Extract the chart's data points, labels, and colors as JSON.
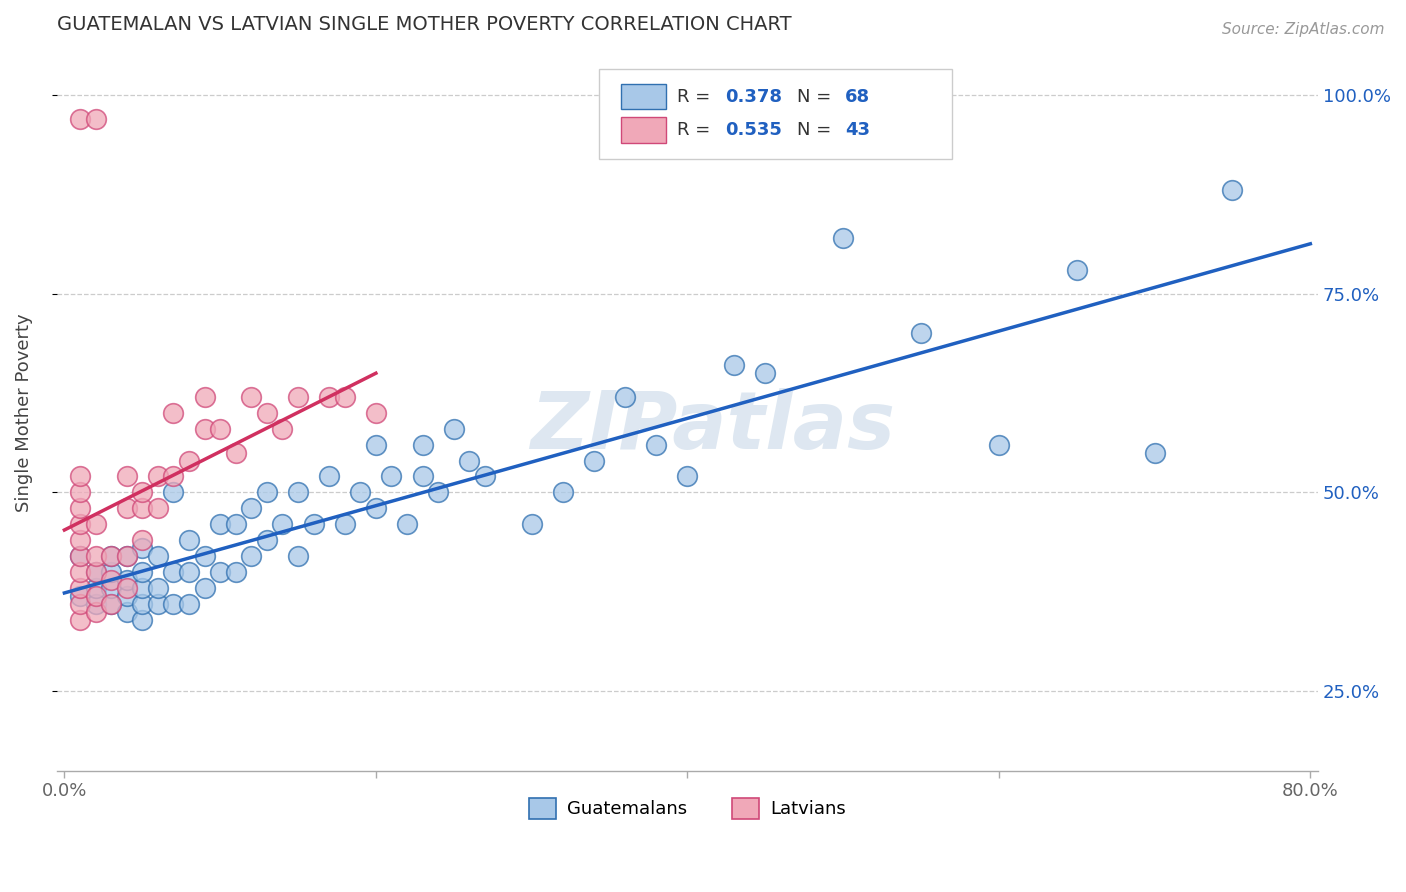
{
  "title": "GUATEMALAN VS LATVIAN SINGLE MOTHER POVERTY CORRELATION CHART",
  "source": "Source: ZipAtlas.com",
  "ylabel": "Single Mother Poverty",
  "legend_label_blue": "Guatemalans",
  "legend_label_pink": "Latvians",
  "R_blue": 0.378,
  "N_blue": 68,
  "R_pink": 0.535,
  "N_pink": 43,
  "blue_color": "#a8c8e8",
  "pink_color": "#f0a8b8",
  "blue_edge_color": "#3070b0",
  "pink_edge_color": "#d04878",
  "blue_line_color": "#2060c0",
  "pink_line_color": "#d03060",
  "watermark": "ZIPatlas",
  "blue_scatter_x": [
    0.01,
    0.01,
    0.02,
    0.02,
    0.02,
    0.03,
    0.03,
    0.03,
    0.03,
    0.04,
    0.04,
    0.04,
    0.04,
    0.05,
    0.05,
    0.05,
    0.05,
    0.05,
    0.06,
    0.06,
    0.06,
    0.07,
    0.07,
    0.07,
    0.08,
    0.08,
    0.08,
    0.09,
    0.09,
    0.1,
    0.1,
    0.11,
    0.11,
    0.12,
    0.12,
    0.13,
    0.13,
    0.14,
    0.15,
    0.15,
    0.16,
    0.17,
    0.18,
    0.19,
    0.2,
    0.2,
    0.21,
    0.22,
    0.23,
    0.23,
    0.24,
    0.25,
    0.26,
    0.27,
    0.3,
    0.32,
    0.34,
    0.36,
    0.38,
    0.4,
    0.43,
    0.45,
    0.5,
    0.55,
    0.6,
    0.65,
    0.7,
    0.75
  ],
  "blue_scatter_y": [
    0.37,
    0.42,
    0.36,
    0.38,
    0.4,
    0.36,
    0.38,
    0.4,
    0.42,
    0.35,
    0.37,
    0.39,
    0.42,
    0.34,
    0.36,
    0.38,
    0.4,
    0.43,
    0.36,
    0.38,
    0.42,
    0.36,
    0.4,
    0.5,
    0.36,
    0.4,
    0.44,
    0.38,
    0.42,
    0.4,
    0.46,
    0.4,
    0.46,
    0.42,
    0.48,
    0.44,
    0.5,
    0.46,
    0.42,
    0.5,
    0.46,
    0.52,
    0.46,
    0.5,
    0.48,
    0.56,
    0.52,
    0.46,
    0.52,
    0.56,
    0.5,
    0.58,
    0.54,
    0.52,
    0.46,
    0.5,
    0.54,
    0.62,
    0.56,
    0.52,
    0.66,
    0.65,
    0.82,
    0.7,
    0.56,
    0.78,
    0.55,
    0.88
  ],
  "pink_scatter_x": [
    0.01,
    0.01,
    0.01,
    0.01,
    0.01,
    0.01,
    0.01,
    0.01,
    0.01,
    0.01,
    0.01,
    0.02,
    0.02,
    0.02,
    0.02,
    0.02,
    0.02,
    0.03,
    0.03,
    0.03,
    0.04,
    0.04,
    0.04,
    0.04,
    0.05,
    0.05,
    0.05,
    0.06,
    0.06,
    0.07,
    0.07,
    0.08,
    0.09,
    0.09,
    0.1,
    0.11,
    0.12,
    0.13,
    0.14,
    0.15,
    0.17,
    0.18,
    0.2
  ],
  "pink_scatter_y": [
    0.34,
    0.36,
    0.38,
    0.4,
    0.42,
    0.44,
    0.46,
    0.48,
    0.5,
    0.52,
    0.97,
    0.35,
    0.37,
    0.4,
    0.42,
    0.46,
    0.97,
    0.36,
    0.39,
    0.42,
    0.38,
    0.42,
    0.48,
    0.52,
    0.44,
    0.48,
    0.5,
    0.48,
    0.52,
    0.52,
    0.6,
    0.54,
    0.58,
    0.62,
    0.58,
    0.55,
    0.62,
    0.6,
    0.58,
    0.62,
    0.62,
    0.62,
    0.6
  ]
}
